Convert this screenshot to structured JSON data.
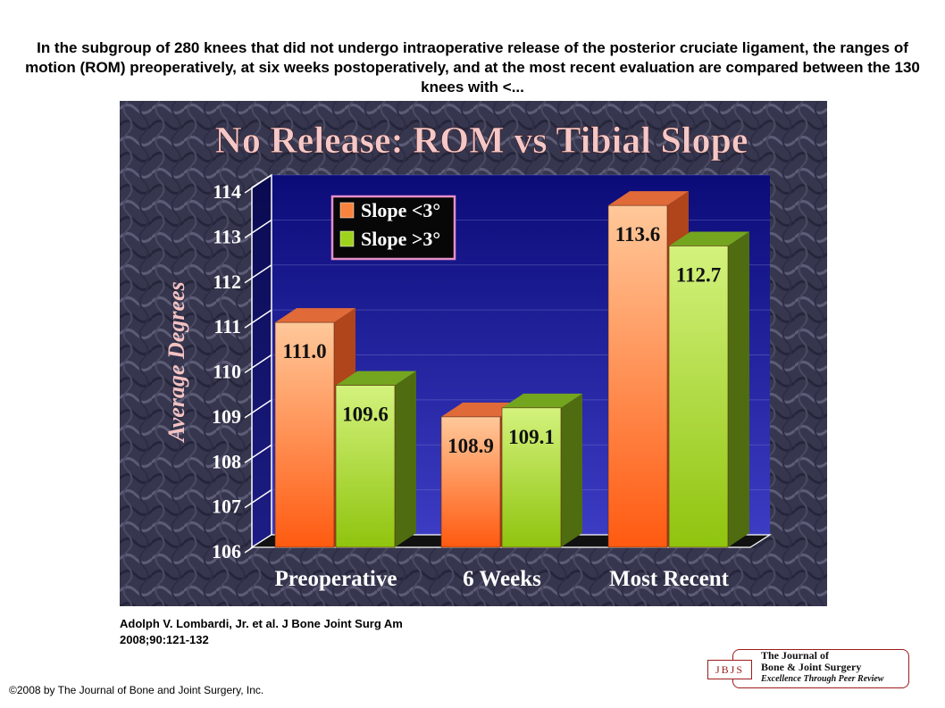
{
  "caption": "In the subgroup of 280 knees that did not undergo intraoperative release of the posterior cruciate ligament, the ranges of motion (ROM) preoperatively, at six weeks postoperatively, and at the most recent evaluation are compared between the 130 knees with <...",
  "citation": {
    "line1": "Adolph V. Lombardi, Jr. et al. J Bone Joint Surg Am",
    "line2": "2008;90:121-132"
  },
  "copyright": "©2008 by The Journal of Bone and Joint Surgery, Inc.",
  "logo": {
    "badge": "JBJS",
    "line1": "The Journal of",
    "line2": "Bone & Joint Surgery",
    "line3": "Excellence Through Peer Review"
  },
  "chart_data": {
    "type": "bar",
    "title": "No Release: ROM vs Tibial Slope",
    "xlabel": "",
    "ylabel": "Average Degrees",
    "ylim": [
      106,
      114
    ],
    "yticks": [
      "106",
      "107",
      "108",
      "109",
      "110",
      "111",
      "112",
      "113",
      "114"
    ],
    "categories": [
      "Preoperative",
      "6 Weeks",
      "Most Recent"
    ],
    "series": [
      {
        "name": "Slope <3°",
        "values": [
          111.0,
          108.9,
          113.6
        ],
        "labels": [
          "111.0",
          "108.9",
          "113.6"
        ],
        "color": "#f7833f"
      },
      {
        "name": "Slope >3°",
        "values": [
          109.6,
          109.1,
          112.7
        ],
        "labels": [
          "109.6",
          "109.1",
          "112.7"
        ],
        "color": "#9fd21c"
      }
    ],
    "grid": true,
    "legend": "top-left"
  }
}
